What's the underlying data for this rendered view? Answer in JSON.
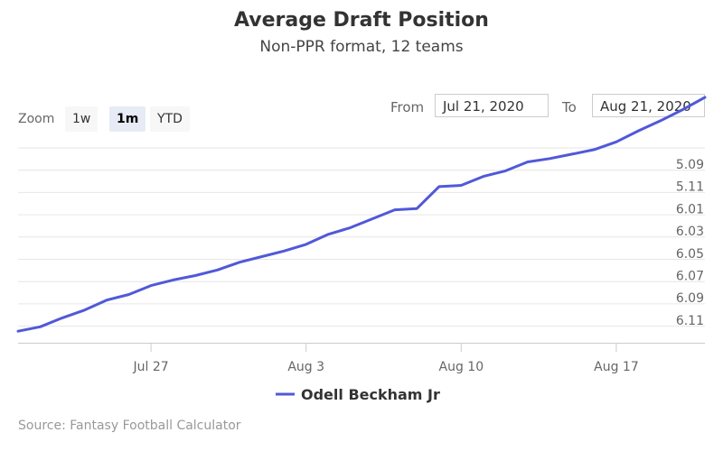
{
  "chart_data": {
    "type": "line",
    "title": "Average Draft Position",
    "subtitle": "Non-PPR format, 12 teams",
    "xlabel": "",
    "ylabel": "",
    "x_ticks": [
      "Jul 27",
      "Aug 3",
      "Aug 10",
      "Aug 17"
    ],
    "y_ticks": [
      "5.09",
      "5.11",
      "6.01",
      "6.03",
      "6.05",
      "6.07",
      "6.09",
      "6.11"
    ],
    "grid": true,
    "legend": "bottom",
    "series": [
      {
        "name": "Odell Beckham Jr",
        "color": "#5059d9",
        "x": [
          "2020-07-21",
          "2020-07-22",
          "2020-07-23",
          "2020-07-24",
          "2020-07-25",
          "2020-07-26",
          "2020-07-27",
          "2020-07-28",
          "2020-07-29",
          "2020-07-30",
          "2020-07-31",
          "2020-08-01",
          "2020-08-02",
          "2020-08-03",
          "2020-08-04",
          "2020-08-05",
          "2020-08-06",
          "2020-08-07",
          "2020-08-08",
          "2020-08-09",
          "2020-08-10",
          "2020-08-11",
          "2020-08-12",
          "2020-08-13",
          "2020-08-14",
          "2020-08-15",
          "2020-08-16",
          "2020-08-17",
          "2020-08-18",
          "2020-08-19",
          "2020-08-20",
          "2020-08-21"
        ],
        "y": [
          6.12,
          6.116,
          6.108,
          6.101,
          6.092,
          6.087,
          6.079,
          6.074,
          6.07,
          6.065,
          6.058,
          6.053,
          6.048,
          6.042,
          6.033,
          6.027,
          6.019,
          6.011,
          6.003,
          5.116,
          5.109,
          5.101,
          5.096,
          5.088,
          5.085,
          5.081,
          5.077,
          5.07,
          5.06,
          5.051,
          5.041,
          5.03
        ]
      }
    ]
  },
  "zoom": {
    "label": "Zoom",
    "buttons": [
      "1w",
      "1m",
      "YTD"
    ],
    "active": "1m"
  },
  "range": {
    "from_label": "From",
    "from_value": "Jul 21, 2020",
    "to_label": "To",
    "to_value": "Aug 21, 2020"
  },
  "source": "Source: Fantasy Football Calculator"
}
